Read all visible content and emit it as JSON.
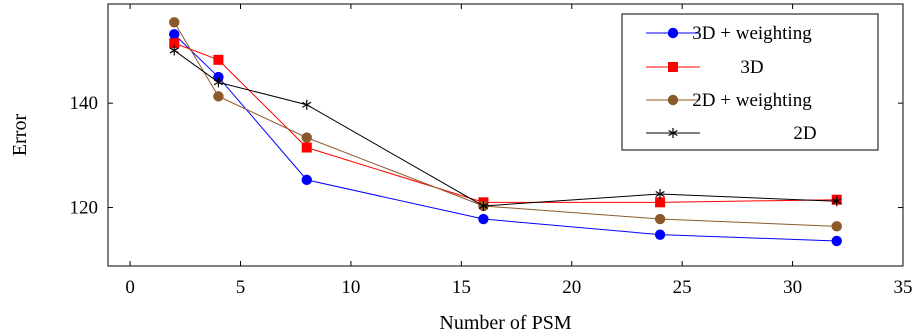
{
  "chart_data": {
    "type": "line",
    "x": [
      2,
      4,
      8,
      16,
      24,
      32
    ],
    "xlabel": "Number of PSM",
    "ylabel": "Error",
    "xlim": [
      -1,
      35
    ],
    "ylim": [
      108.8,
      159
    ],
    "xticks": [
      0,
      5,
      10,
      15,
      20,
      25,
      30,
      35
    ],
    "yticks": [
      120,
      140
    ],
    "grid": false,
    "legend_position": "top-right",
    "series": [
      {
        "name": "3D + weighting",
        "color": "#0000ff",
        "marker": "circle",
        "values": [
          153.2,
          145.0,
          125.3,
          117.8,
          114.8,
          113.6
        ]
      },
      {
        "name": "3D",
        "color": "#ff0000",
        "marker": "square",
        "values": [
          151.5,
          148.3,
          131.5,
          121.0,
          121.0,
          121.5
        ]
      },
      {
        "name": "2D + weighting",
        "color": "#8b5a2b",
        "marker": "circle",
        "values": [
          155.5,
          141.3,
          133.4,
          120.3,
          117.8,
          116.4
        ]
      },
      {
        "name": "2D",
        "color": "#000000",
        "marker": "star",
        "values": [
          150.1,
          144.0,
          139.7,
          120.3,
          122.6,
          121.2
        ]
      }
    ]
  }
}
